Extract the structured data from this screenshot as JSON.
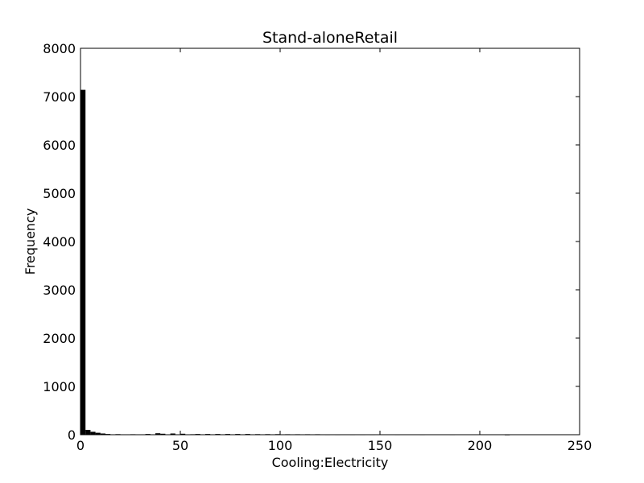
{
  "chart_data": {
    "type": "bar",
    "title": "Stand-aloneRetail",
    "xlabel": "Cooling:Electricity",
    "ylabel": "Frequency",
    "xlim": [
      0,
      250
    ],
    "ylim": [
      0,
      8000
    ],
    "xticks": [
      0,
      50,
      100,
      150,
      200,
      250
    ],
    "yticks": [
      0,
      1000,
      2000,
      3000,
      4000,
      5000,
      6000,
      7000,
      8000
    ],
    "grid": false,
    "bar_color": "#000000",
    "bin_width": 2.5,
    "bins": [
      {
        "x": 0,
        "count": 7140
      },
      {
        "x": 2.5,
        "count": 100
      },
      {
        "x": 5,
        "count": 60
      },
      {
        "x": 7.5,
        "count": 40
      },
      {
        "x": 10,
        "count": 25
      },
      {
        "x": 12.5,
        "count": 15
      },
      {
        "x": 17.5,
        "count": 12
      },
      {
        "x": 25,
        "count": 10
      },
      {
        "x": 32.5,
        "count": 15
      },
      {
        "x": 37.5,
        "count": 30
      },
      {
        "x": 40,
        "count": 20
      },
      {
        "x": 45,
        "count": 25
      },
      {
        "x": 50,
        "count": 20
      },
      {
        "x": 55,
        "count": 10
      },
      {
        "x": 57.5,
        "count": 15
      },
      {
        "x": 62.5,
        "count": 15
      },
      {
        "x": 67.5,
        "count": 15
      },
      {
        "x": 72.5,
        "count": 15
      },
      {
        "x": 77.5,
        "count": 15
      },
      {
        "x": 82.5,
        "count": 15
      },
      {
        "x": 87.5,
        "count": 12
      },
      {
        "x": 92.5,
        "count": 12
      },
      {
        "x": 97.5,
        "count": 12
      },
      {
        "x": 102.5,
        "count": 10
      },
      {
        "x": 107.5,
        "count": 10
      },
      {
        "x": 112.5,
        "count": 10
      },
      {
        "x": 117.5,
        "count": 10
      },
      {
        "x": 122.5,
        "count": 8
      },
      {
        "x": 127.5,
        "count": 8
      },
      {
        "x": 135,
        "count": 8
      },
      {
        "x": 140,
        "count": 8
      },
      {
        "x": 145,
        "count": 8
      },
      {
        "x": 157.5,
        "count": 8
      },
      {
        "x": 170,
        "count": 8
      },
      {
        "x": 185,
        "count": 8
      },
      {
        "x": 212.5,
        "count": 5
      }
    ]
  }
}
